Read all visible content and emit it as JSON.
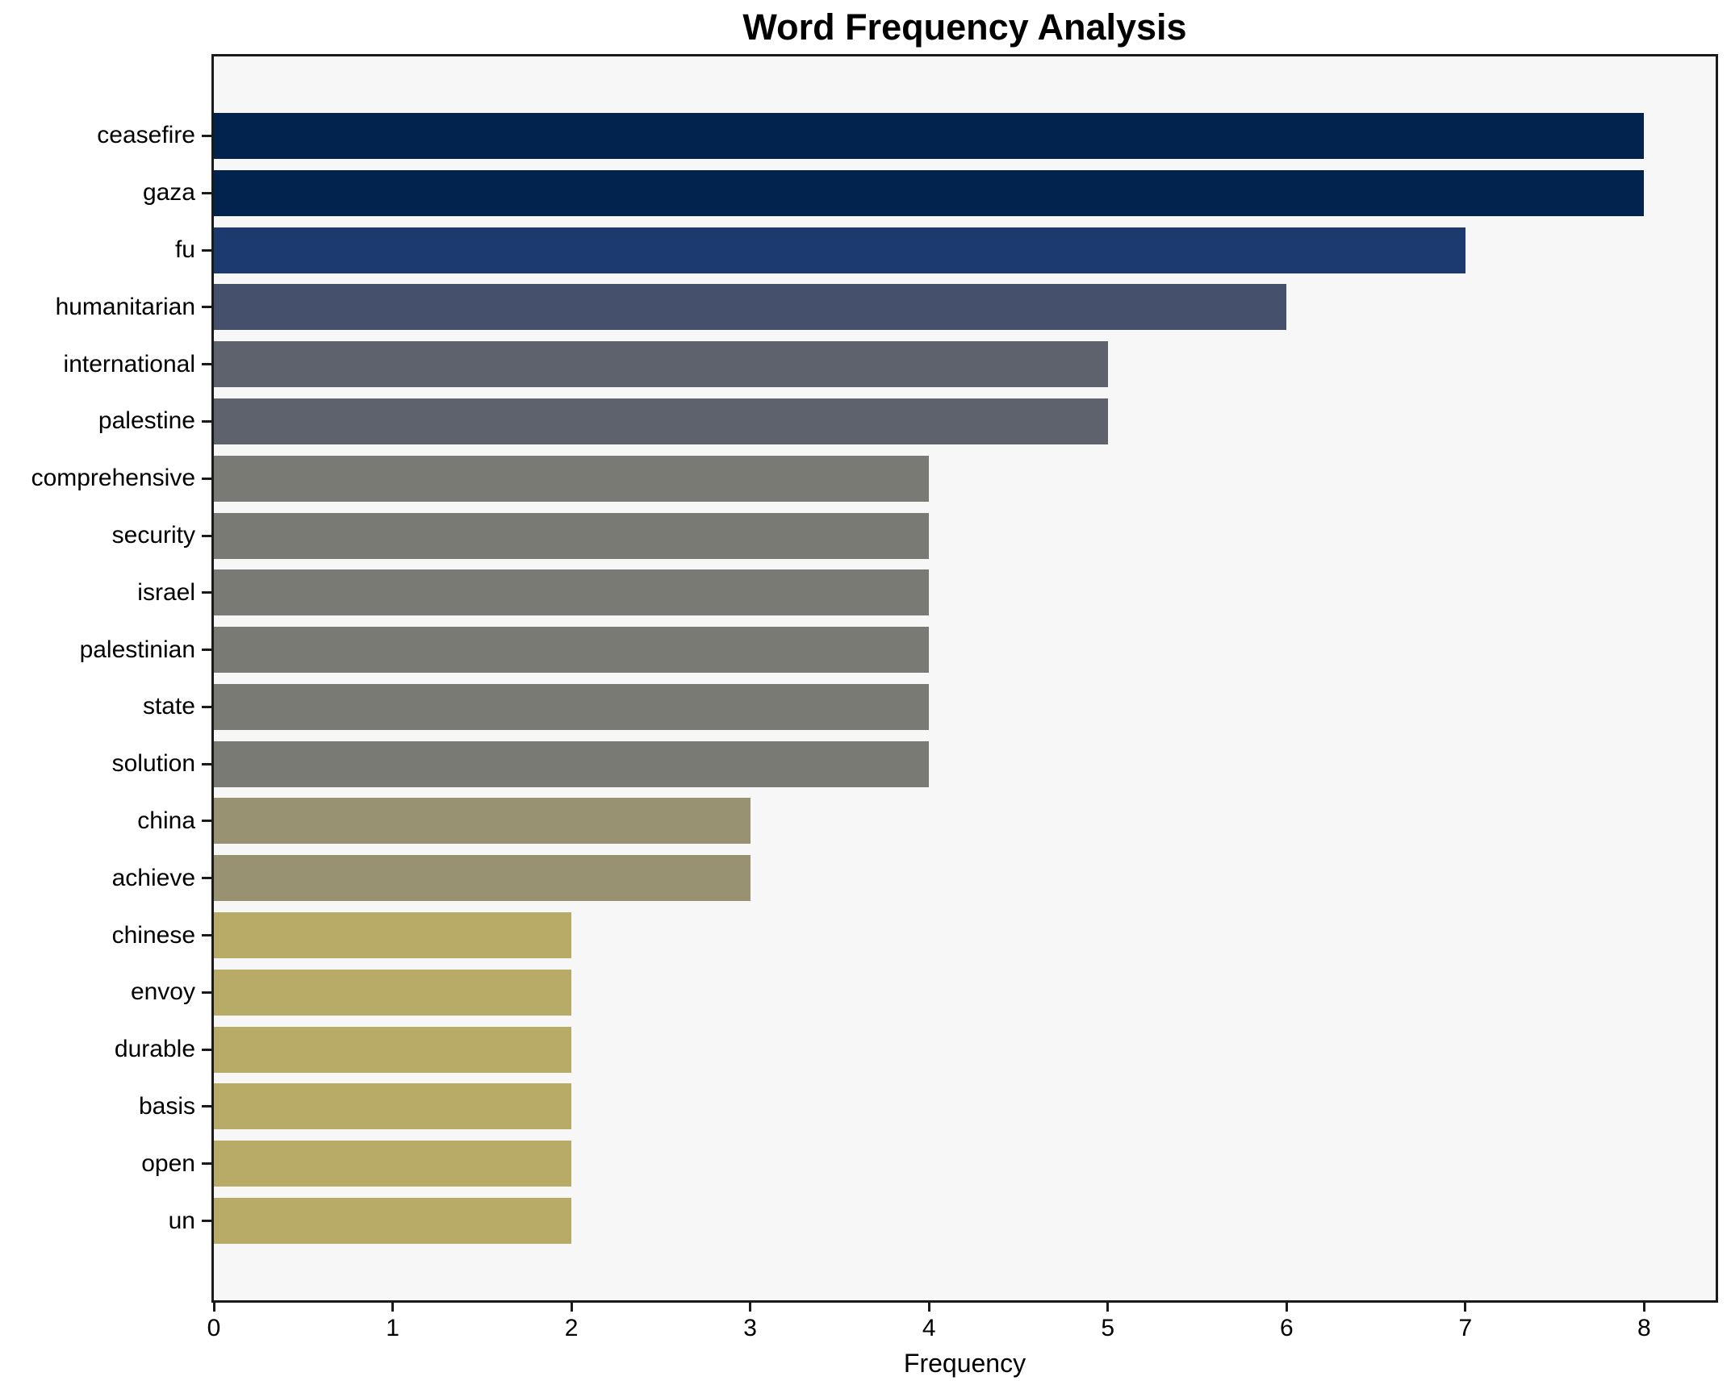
{
  "title": "Word Frequency Analysis",
  "xlabel": "Frequency",
  "chart_data": {
    "type": "bar",
    "orientation": "horizontal",
    "title": "Word Frequency Analysis",
    "xlabel": "Frequency",
    "ylabel": "",
    "grid": false,
    "legend": false,
    "plot_background": "#f7f7f8",
    "figure_background": "#ffffff",
    "spine_color": "#1a1a1a",
    "xlim": [
      0,
      8.4
    ],
    "xticks": [
      0,
      1,
      2,
      3,
      4,
      5,
      6,
      7,
      8
    ],
    "categories": [
      "ceasefire",
      "gaza",
      "fu",
      "humanitarian",
      "international",
      "palestine",
      "comprehensive",
      "security",
      "israel",
      "palestinian",
      "state",
      "solution",
      "china",
      "achieve",
      "chinese",
      "envoy",
      "durable",
      "basis",
      "open",
      "un"
    ],
    "values": [
      8,
      8,
      7,
      6,
      5,
      5,
      4,
      4,
      4,
      4,
      4,
      4,
      3,
      3,
      2,
      2,
      2,
      2,
      2,
      2
    ],
    "bar_colors": [
      "#02234e",
      "#02234e",
      "#1c3a6e",
      "#45506d",
      "#5e626d",
      "#5e626d",
      "#7a7a75",
      "#7a7a75",
      "#7a7a75",
      "#7a7a75",
      "#7a7a75",
      "#7a7a75",
      "#989272",
      "#989272",
      "#b7ab67",
      "#b7ab67",
      "#b7ab67",
      "#b7ab67",
      "#b7ab67",
      "#b7ab67"
    ]
  }
}
